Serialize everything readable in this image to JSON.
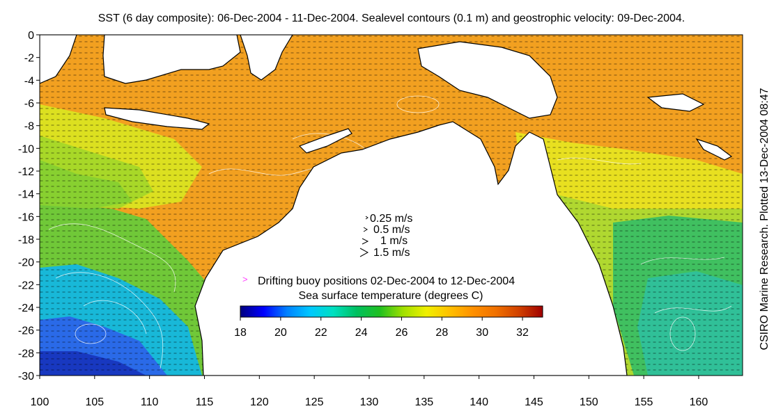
{
  "title": "SST (6 day composite): 06-Dec-2004 - 11-Dec-2004. Sealevel contours (0.1 m) and geostrophic velocity: 09-Dec-2004.",
  "credit": "CSIRO Marine Research. Plotted 13-Dec-2004 08:47",
  "axes": {
    "x_ticks": [
      100,
      105,
      110,
      115,
      120,
      125,
      130,
      135,
      140,
      145,
      150,
      155,
      160
    ],
    "y_ticks": [
      0,
      -2,
      -4,
      -6,
      -8,
      -10,
      -12,
      -14,
      -16,
      -18,
      -20,
      -22,
      -24,
      -26,
      -28,
      -30
    ],
    "lon_range": [
      100,
      164
    ],
    "lat_range": [
      -30,
      0
    ]
  },
  "velocity_legend": [
    "0.25 m/s",
    "0.5 m/s",
    "1 m/s",
    "1.5 m/s"
  ],
  "buoy_legend": {
    "marker": ">",
    "label": "Drifting buoy positions 02-Dec-2004 to 12-Dec-2004",
    "color": "#ff40ff"
  },
  "colorbar": {
    "label": "Sea surface temperature (degrees C)",
    "ticks": [
      18,
      20,
      22,
      24,
      26,
      28,
      30,
      32
    ],
    "range": [
      18,
      33
    ],
    "colors": [
      "#00007f",
      "#0000ff",
      "#0080ff",
      "#00c8ff",
      "#00e0c0",
      "#00c060",
      "#20c020",
      "#a0e000",
      "#f0f000",
      "#ffc000",
      "#ff9000",
      "#f07000",
      "#d04000",
      "#a00000"
    ]
  },
  "colors": {
    "land": "#ffffff",
    "coast": "#000000",
    "contour": "#ffffff",
    "vector": "#000000"
  }
}
